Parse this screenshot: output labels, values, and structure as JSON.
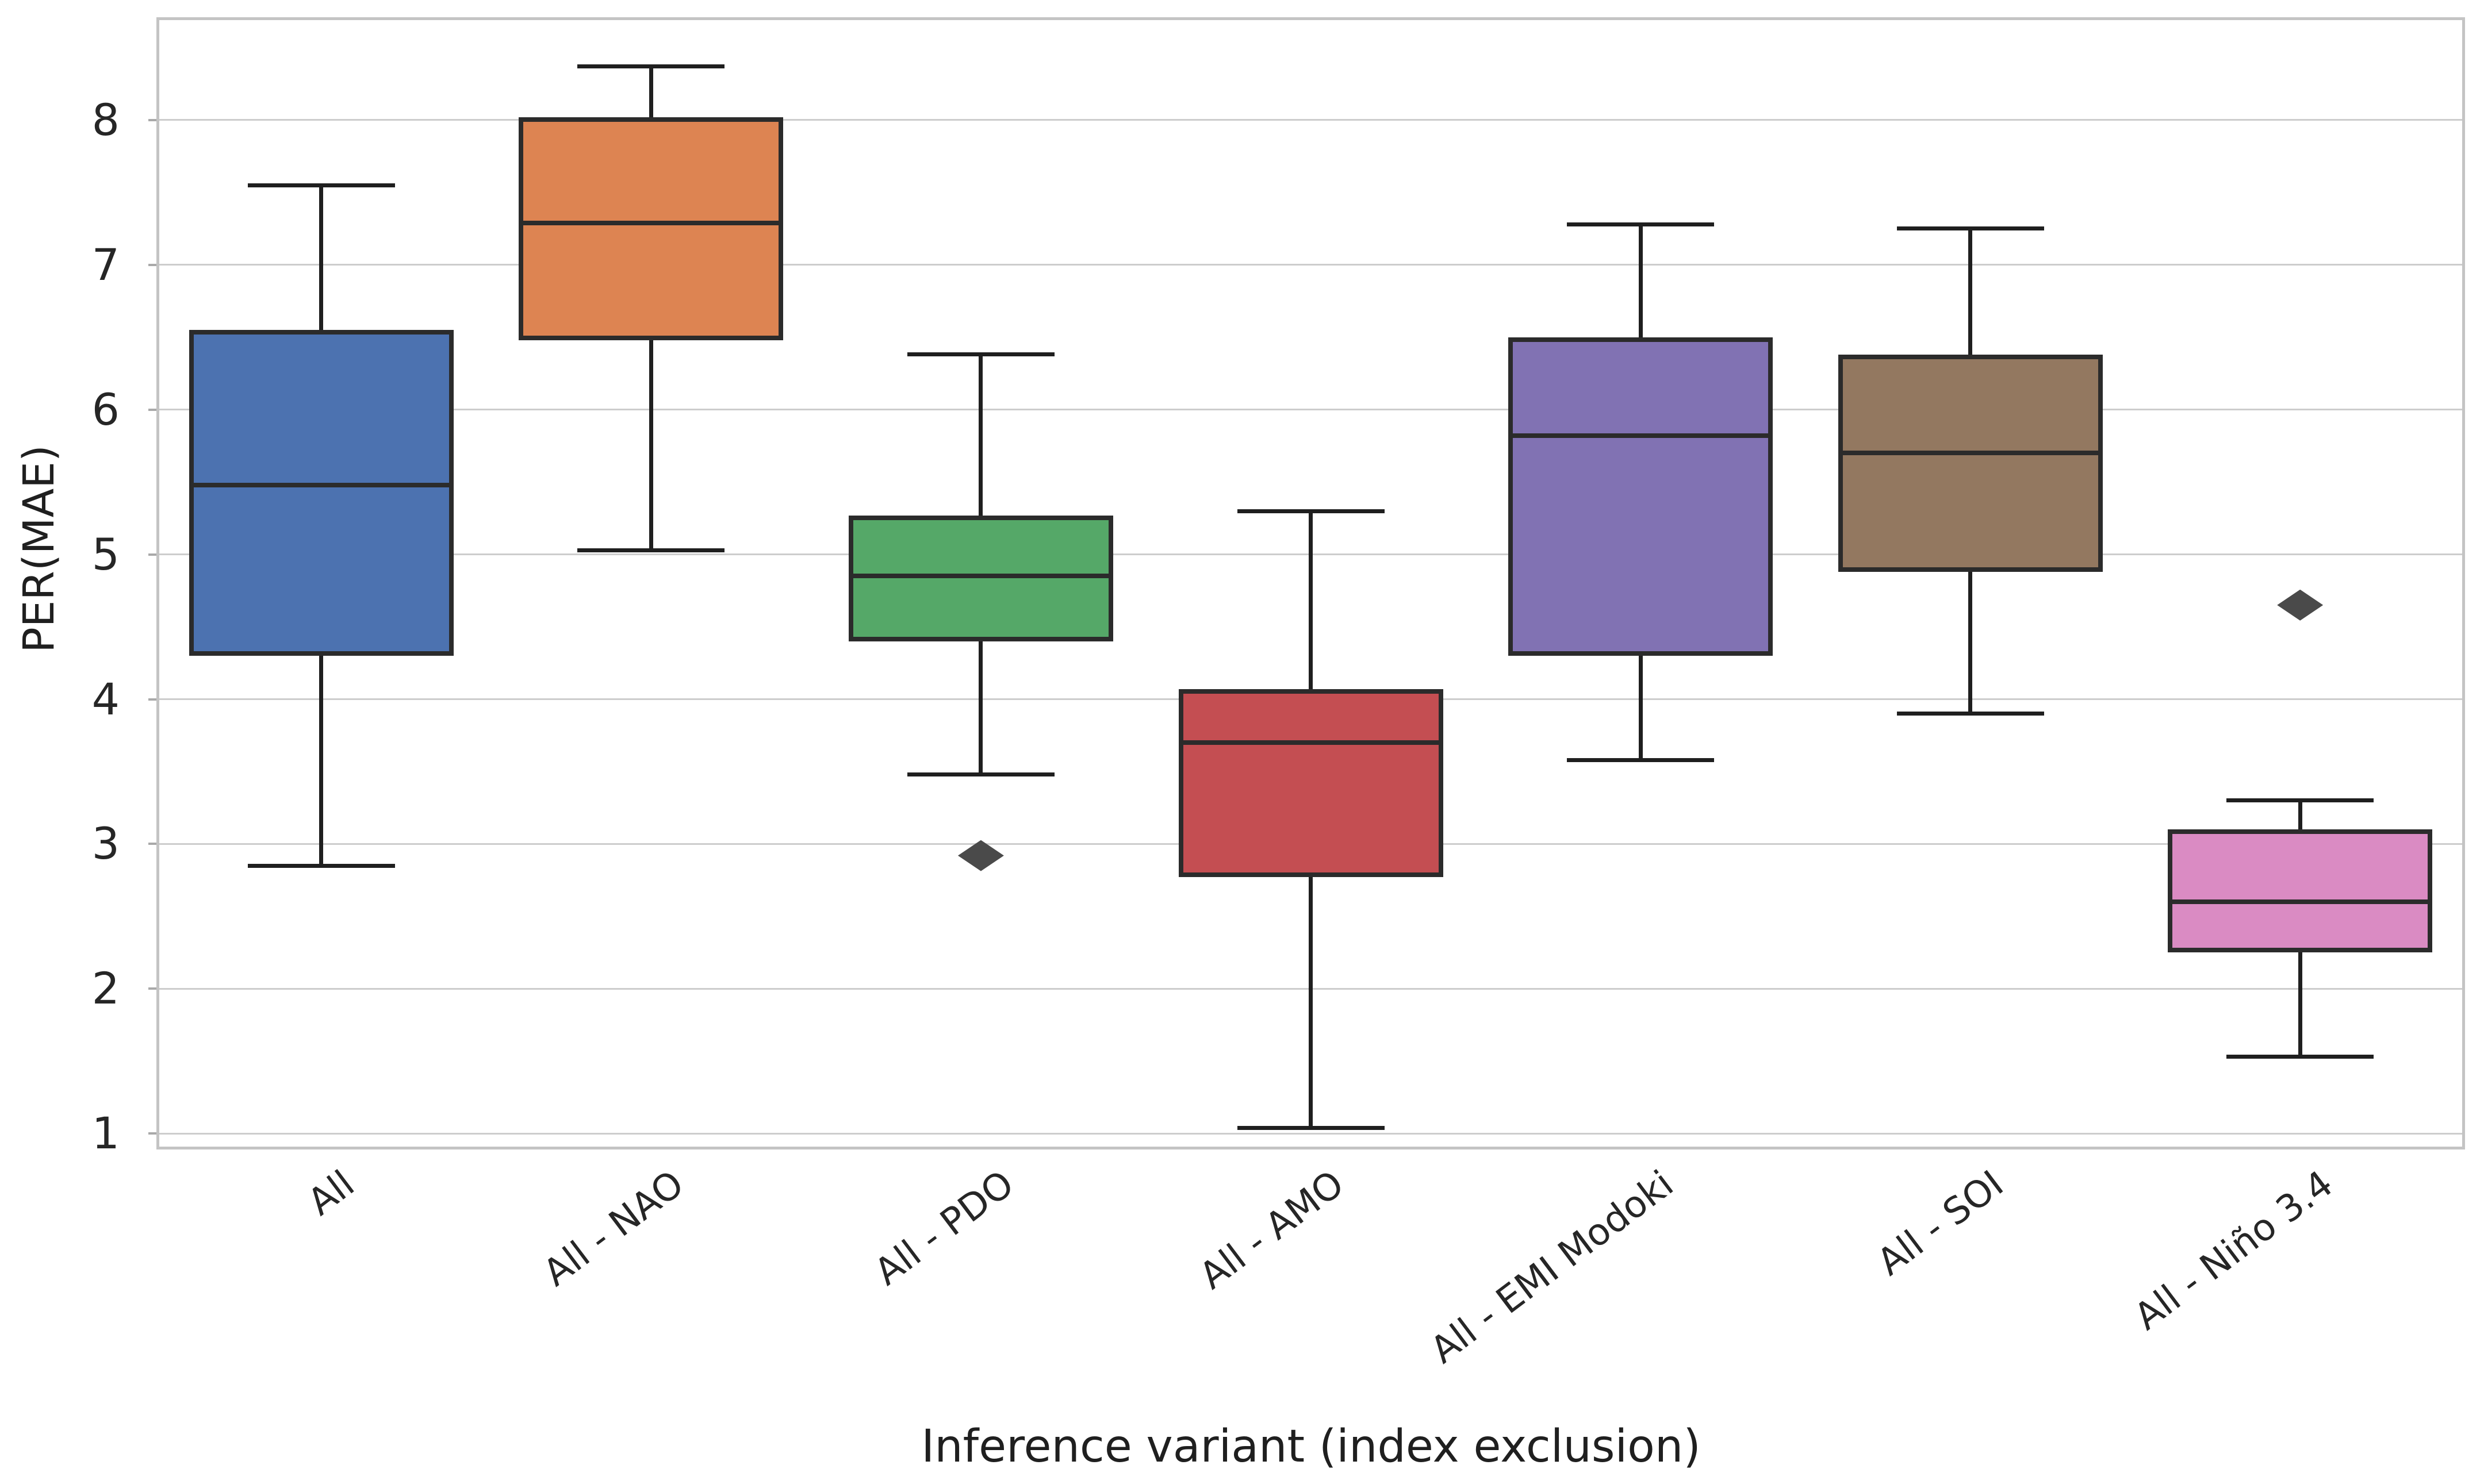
{
  "figure": {
    "background_color": "#ffffff",
    "grid_color": "#cdcdcd",
    "spine_color": "#c4c4c4",
    "tick_color": "#a9a9a9",
    "text_color": "#262626",
    "box_edge_color": "#2b2b2b",
    "whisker_color": "#1f1f1f",
    "flier_color": "#4a4a4a"
  },
  "chart_data": {
    "type": "boxplot",
    "title": "",
    "xlabel": "Inference variant (index exclusion)",
    "ylabel": "PER(MAE)",
    "ylim": [
      0.89,
      8.71
    ],
    "yticks": [
      1,
      2,
      3,
      4,
      5,
      6,
      7,
      8
    ],
    "grid": "horizontal gridlines on, white background",
    "legend_position": "none",
    "x_tick_rotation_deg": 37,
    "categories": [
      "All",
      "All - NAO",
      "All - PDO",
      "All - AMO",
      "All - EMI Modoki",
      "All - SOI",
      "All - Niño 3.4"
    ],
    "series": [
      {
        "label": "All",
        "color": "#4C72B0",
        "whisker_low": 2.85,
        "q1": 4.3,
        "median": 5.48,
        "q3": 6.55,
        "whisker_high": 7.55,
        "outliers": []
      },
      {
        "label": "All - NAO",
        "color": "#DD8452",
        "whisker_low": 5.03,
        "q1": 6.48,
        "median": 7.29,
        "q3": 8.02,
        "whisker_high": 8.37,
        "outliers": []
      },
      {
        "label": "All - PDO",
        "color": "#55A868",
        "whisker_low": 3.48,
        "q1": 4.4,
        "median": 4.85,
        "q3": 5.27,
        "whisker_high": 6.38,
        "outliers": [
          2.92
        ]
      },
      {
        "label": "All - AMO",
        "color": "#C44E52",
        "whisker_low": 1.04,
        "q1": 2.77,
        "median": 3.7,
        "q3": 4.07,
        "whisker_high": 5.3,
        "outliers": []
      },
      {
        "label": "All - EMI Modoki",
        "color": "#8172B3",
        "whisker_low": 3.58,
        "q1": 4.3,
        "median": 5.82,
        "q3": 6.5,
        "whisker_high": 7.28,
        "outliers": []
      },
      {
        "label": "All - SOI",
        "color": "#937860",
        "whisker_low": 3.9,
        "q1": 4.88,
        "median": 5.7,
        "q3": 6.38,
        "whisker_high": 7.25,
        "outliers": []
      },
      {
        "label": "All - Niño 3.4",
        "color": "#DA8BC3",
        "whisker_low": 1.53,
        "q1": 2.25,
        "median": 2.6,
        "q3": 3.1,
        "whisker_high": 3.3,
        "outliers": [
          4.65
        ]
      }
    ]
  }
}
